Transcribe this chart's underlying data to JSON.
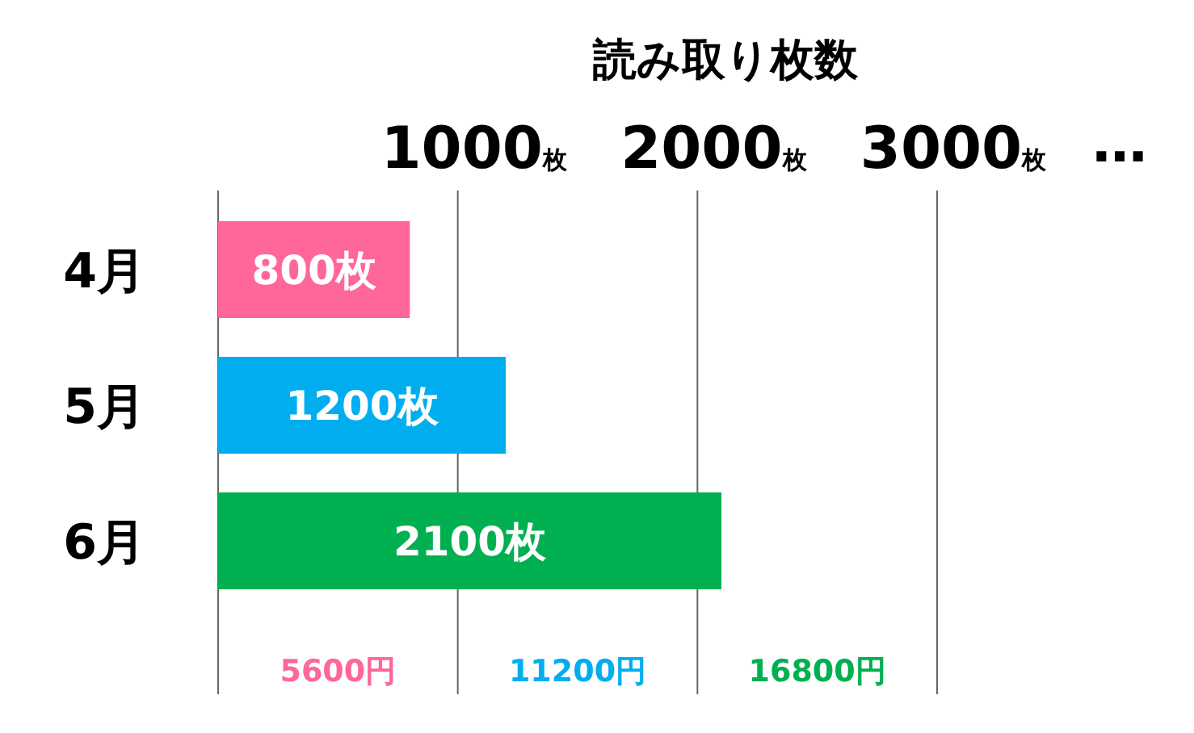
{
  "chart_data": {
    "type": "bar",
    "orientation": "horizontal",
    "title": "読み取り枚数",
    "categories": [
      "4月",
      "5月",
      "6月"
    ],
    "values": [
      800,
      1200,
      2100
    ],
    "colors": [
      "#ff6699",
      "#00aeef",
      "#00b050"
    ],
    "value_labels": [
      "800枚",
      "1200枚",
      "2100枚"
    ],
    "xlim": [
      0,
      3000
    ],
    "xticks": [
      {
        "value": 0,
        "label": null
      },
      {
        "value": 1000,
        "label": "1000枚"
      },
      {
        "value": 2000,
        "label": "2000枚"
      },
      {
        "value": 3000,
        "label": "3000枚"
      }
    ],
    "grid": "x",
    "annotations": [
      "…",
      "5600円",
      "11200円",
      "16800円"
    ]
  }
}
